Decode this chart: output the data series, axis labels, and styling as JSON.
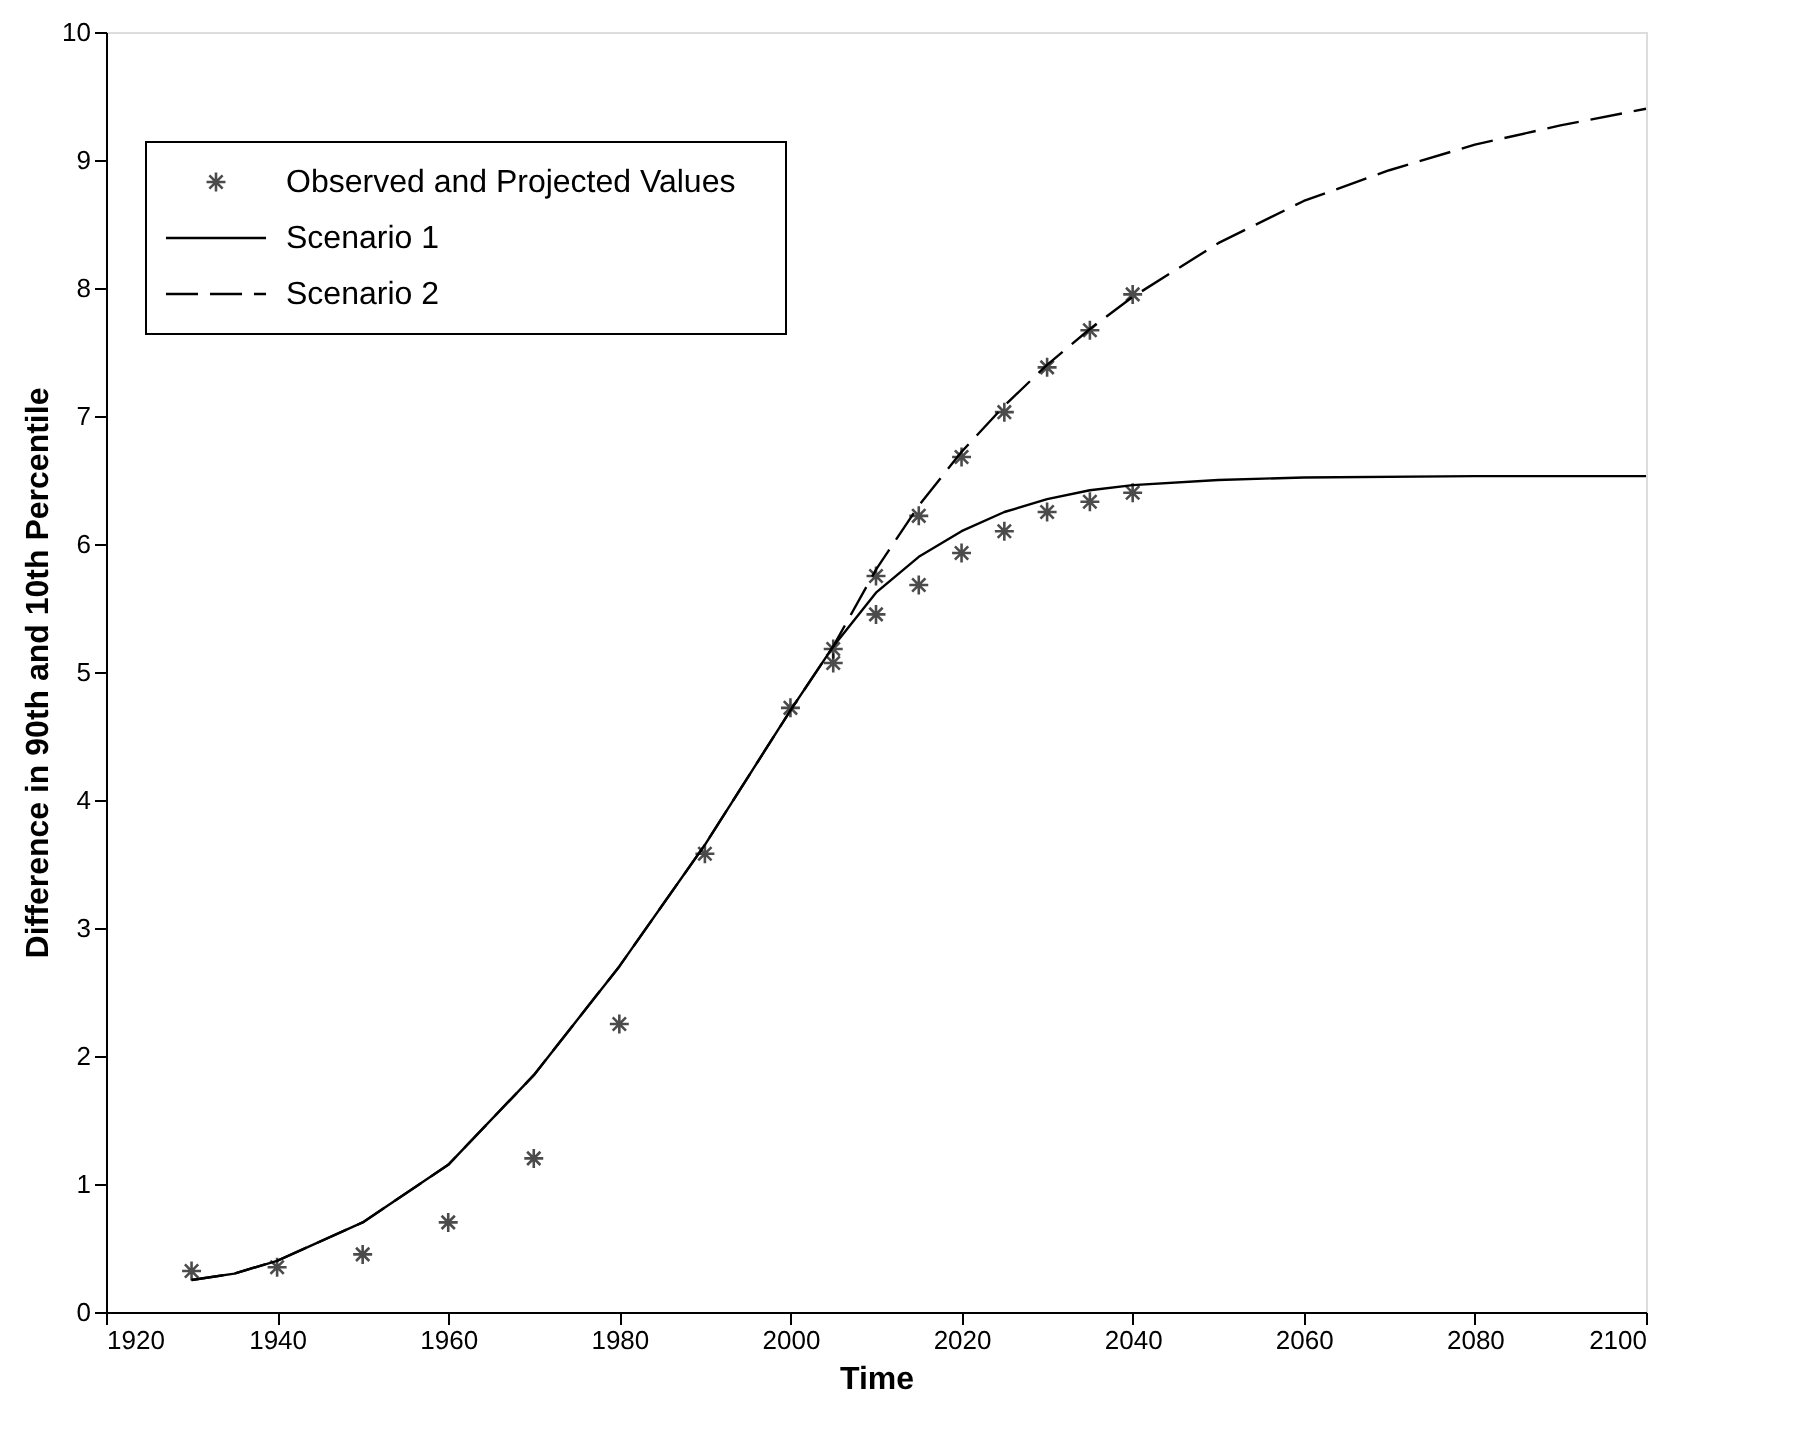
{
  "chart_data": {
    "type": "line",
    "xlabel": "Time",
    "ylabel": "Difference in 90th and 10th Percentile",
    "xlim": [
      1920,
      2100
    ],
    "xticks": [
      1920,
      1940,
      1960,
      1980,
      2000,
      2020,
      2040,
      2060,
      2080,
      2100
    ],
    "ylim": [
      0,
      10
    ],
    "yticks": [
      0,
      1,
      2,
      3,
      4,
      5,
      6,
      7,
      8,
      9,
      10
    ],
    "grid": false,
    "legend": "top left",
    "series": [
      {
        "name": "Observed and Projected Values",
        "type": "scatter",
        "marker": "cross",
        "color": "#000000",
        "x": [
          1930,
          1940,
          1950,
          1960,
          1970,
          1980,
          1990,
          2000,
          2005,
          2005,
          2010,
          2010,
          2015,
          2015,
          2020,
          2020,
          2025,
          2025,
          2030,
          2030,
          2035,
          2035,
          2040,
          2040
        ],
        "values": [
          0.32,
          0.35,
          0.45,
          0.7,
          1.2,
          2.25,
          3.58,
          4.72,
          5.18,
          5.07,
          5.75,
          5.45,
          6.22,
          5.68,
          6.68,
          5.93,
          7.03,
          6.1,
          7.38,
          6.25,
          7.67,
          6.33,
          7.95,
          6.4
        ]
      },
      {
        "name": "Scenario 1",
        "line_style": "solid",
        "color": "#000000",
        "x": [
          1930,
          1935,
          1940,
          1950,
          1960,
          1970,
          1980,
          1990,
          2000,
          2005,
          2010,
          2015,
          2020,
          2025,
          2030,
          2035,
          2040,
          2050,
          2060,
          2080,
          2100
        ],
        "values": [
          0.25,
          0.3,
          0.4,
          0.7,
          1.15,
          1.85,
          2.7,
          3.65,
          4.7,
          5.2,
          5.62,
          5.9,
          6.1,
          6.25,
          6.35,
          6.42,
          6.46,
          6.5,
          6.52,
          6.53,
          6.53
        ]
      },
      {
        "name": "Scenario 2",
        "line_style": "dashed",
        "color": "#000000",
        "x": [
          1930,
          1935,
          1940,
          1950,
          1960,
          1970,
          1980,
          1990,
          2000,
          2005,
          2010,
          2015,
          2020,
          2025,
          2030,
          2035,
          2040,
          2050,
          2060,
          2070,
          2080,
          2090,
          2100
        ],
        "values": [
          0.25,
          0.3,
          0.4,
          0.7,
          1.15,
          1.85,
          2.7,
          3.65,
          4.7,
          5.2,
          5.8,
          6.3,
          6.72,
          7.08,
          7.4,
          7.68,
          7.93,
          8.35,
          8.68,
          8.92,
          9.12,
          9.27,
          9.4
        ]
      }
    ]
  }
}
